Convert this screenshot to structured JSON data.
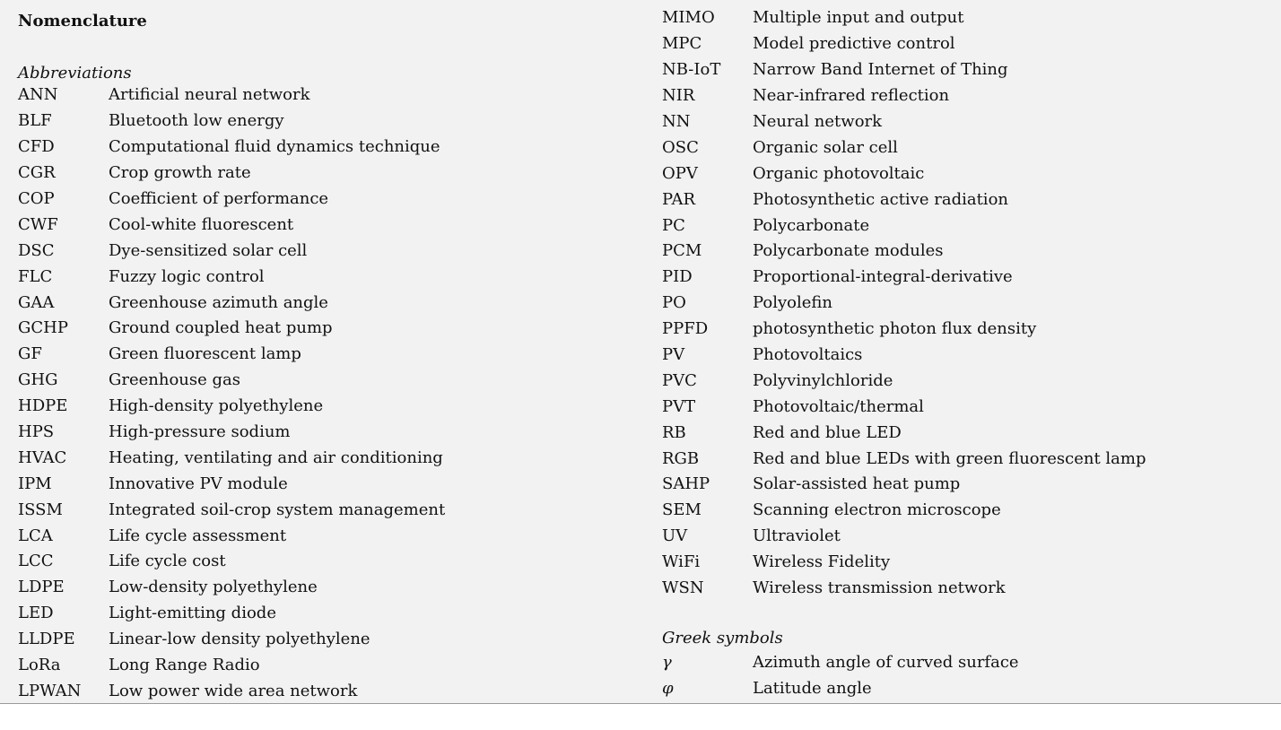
{
  "title": "Nomenclature",
  "abbreviations_heading": "Abbreviations",
  "greek_heading": "Greek symbols",
  "abbreviations_left": [
    {
      "abbr": "ANN",
      "def": "Artificial neural network"
    },
    {
      "abbr": "BLF",
      "def": "Bluetooth low energy"
    },
    {
      "abbr": "CFD",
      "def": "Computational fluid dynamics technique"
    },
    {
      "abbr": "CGR",
      "def": "Crop growth rate"
    },
    {
      "abbr": "COP",
      "def": "Coefficient of performance"
    },
    {
      "abbr": "CWF",
      "def": "Cool-white fluorescent"
    },
    {
      "abbr": "DSC",
      "def": "Dye-sensitized solar cell"
    },
    {
      "abbr": "FLC",
      "def": "Fuzzy logic control"
    },
    {
      "abbr": "GAA",
      "def": "Greenhouse azimuth angle"
    },
    {
      "abbr": "GCHP",
      "def": "Ground coupled heat pump"
    },
    {
      "abbr": "GF",
      "def": "Green fluorescent lamp"
    },
    {
      "abbr": "GHG",
      "def": "Greenhouse gas"
    },
    {
      "abbr": "HDPE",
      "def": "High-density polyethylene"
    },
    {
      "abbr": "HPS",
      "def": "High-pressure sodium"
    },
    {
      "abbr": "HVAC",
      "def": "Heating, ventilating and air conditioning"
    },
    {
      "abbr": "IPM",
      "def": "Innovative PV module"
    },
    {
      "abbr": "ISSM",
      "def": "Integrated soil-crop system management"
    },
    {
      "abbr": "LCA",
      "def": "Life cycle assessment"
    },
    {
      "abbr": "LCC",
      "def": "Life cycle cost"
    },
    {
      "abbr": "LDPE",
      "def": "Low-density polyethylene"
    },
    {
      "abbr": "LED",
      "def": "Light-emitting diode"
    },
    {
      "abbr": "LLDPE",
      "def": "Linear-low density polyethylene"
    },
    {
      "abbr": "LoRa",
      "def": "Long Range Radio"
    },
    {
      "abbr": "LPWAN",
      "def": "Low power wide area network"
    }
  ],
  "abbreviations_right": [
    {
      "abbr": "MIMO",
      "def": "Multiple input and output"
    },
    {
      "abbr": "MPC",
      "def": "Model predictive control"
    },
    {
      "abbr": "NB-IoT",
      "def": "Narrow Band Internet of Thing"
    },
    {
      "abbr": "NIR",
      "def": "Near-infrared reflection"
    },
    {
      "abbr": "NN",
      "def": "Neural network"
    },
    {
      "abbr": "OSC",
      "def": "Organic solar cell"
    },
    {
      "abbr": "OPV",
      "def": "Organic photovoltaic"
    },
    {
      "abbr": "PAR",
      "def": "Photosynthetic active radiation"
    },
    {
      "abbr": "PC",
      "def": "Polycarbonate"
    },
    {
      "abbr": "PCM",
      "def": "Polycarbonate modules"
    },
    {
      "abbr": "PID",
      "def": "Proportional-integral-derivative"
    },
    {
      "abbr": "PO",
      "def": "Polyolefin"
    },
    {
      "abbr": "PPFD",
      "def": "photosynthetic photon flux density"
    },
    {
      "abbr": "PV",
      "def": "Photovoltaics"
    },
    {
      "abbr": "PVC",
      "def": "Polyvinylchloride"
    },
    {
      "abbr": "PVT",
      "def": "Photovoltaic/thermal"
    },
    {
      "abbr": "RB",
      "def": "Red and blue LED"
    },
    {
      "abbr": "RGB",
      "def": "Red and blue LEDs with green fluorescent lamp"
    },
    {
      "abbr": "SAHP",
      "def": "Solar-assisted heat pump"
    },
    {
      "abbr": "SEM",
      "def": "Scanning electron microscope"
    },
    {
      "abbr": "UV",
      "def": "Ultraviolet"
    },
    {
      "abbr": "WiFi",
      "def": "Wireless Fidelity"
    },
    {
      "abbr": "WSN",
      "def": "Wireless transmission network"
    }
  ],
  "greek_symbols": [
    {
      "abbr": "γ",
      "def": "Azimuth angle of curved surface"
    },
    {
      "abbr": "φ",
      "def": "Latitude angle"
    }
  ]
}
